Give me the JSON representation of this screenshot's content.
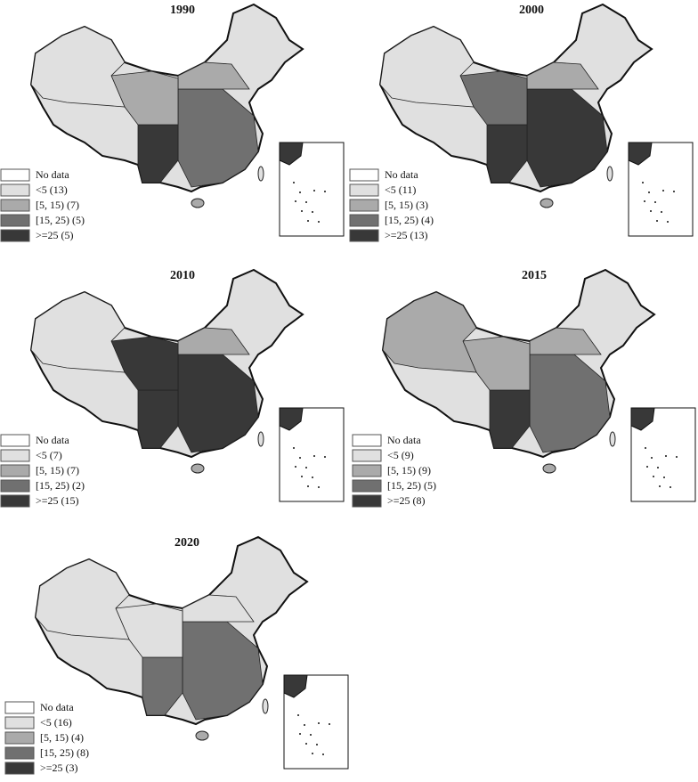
{
  "legend_colors": [
    "#ffffff",
    "#e0e0e0",
    "#aaaaaa",
    "#707070",
    "#383838"
  ],
  "panels": [
    {
      "title": "1990",
      "legend": [
        "No data",
        "<5 (13)",
        "[5, 15) (7)",
        "[15, 25) (5)",
        ">=25 (5)"
      ]
    },
    {
      "title": "2000",
      "legend": [
        "No data",
        "<5 (11)",
        "[5, 15) (3)",
        "[15, 25) (4)",
        ">=25 (13)"
      ]
    },
    {
      "title": "2010",
      "legend": [
        "No data",
        "<5 (7)",
        "[5, 15) (7)",
        "[15, 25) (2)",
        ">=25 (15)"
      ]
    },
    {
      "title": "2015",
      "legend": [
        "No data",
        "<5 (9)",
        "[5, 15) (9)",
        "[15, 25) (5)",
        ">=25 (8)"
      ]
    },
    {
      "title": "2020",
      "legend": [
        "No data",
        "<5 (16)",
        "[5, 15) (4)",
        "[15, 25) (8)",
        ">=25 (3)"
      ]
    }
  ]
}
